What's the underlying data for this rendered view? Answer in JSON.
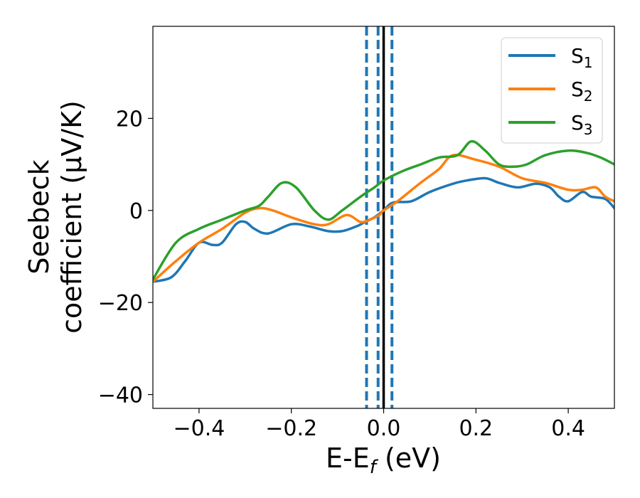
{
  "chart_data": {
    "type": "line",
    "xlabel": {
      "main": "E-E",
      "sub": "f",
      "unit": " (eV)"
    },
    "ylabel": {
      "line1": "Seebeck",
      "line2": "coefficient  (μV/K)"
    },
    "xlim": [
      -0.5,
      0.5
    ],
    "ylim": [
      -43,
      40
    ],
    "xticks": [
      -0.4,
      -0.2,
      0.0,
      0.2,
      0.4
    ],
    "xtick_labels": [
      "−0.4",
      "−0.2",
      "0.0",
      "0.2",
      "0.4"
    ],
    "yticks": [
      -40,
      -20,
      0,
      20
    ],
    "ytick_labels": [
      "−40",
      "−20",
      "0",
      "20"
    ],
    "grid": false,
    "legend_position": "top-right",
    "vlines": [
      {
        "x": 0.0,
        "style": "solid",
        "color": "#000000"
      },
      {
        "x": -0.037,
        "style": "dashed",
        "color": "#1f77b4"
      },
      {
        "x": -0.012,
        "style": "dashed",
        "color": "#1f77b4"
      },
      {
        "x": 0.018,
        "style": "dashed",
        "color": "#1f77b4"
      }
    ],
    "series": [
      {
        "name": "S",
        "sub": "1",
        "color": "#1f77b4",
        "x": [
          -0.5,
          -0.46,
          -0.43,
          -0.4,
          -0.37,
          -0.35,
          -0.32,
          -0.3,
          -0.28,
          -0.25,
          -0.2,
          -0.16,
          -0.12,
          -0.09,
          -0.06,
          -0.04,
          -0.02,
          0.0,
          0.02,
          0.06,
          0.1,
          0.15,
          0.18,
          0.22,
          0.25,
          0.29,
          0.33,
          0.36,
          0.38,
          0.4,
          0.43,
          0.45,
          0.48,
          0.5
        ],
        "y": [
          -15.5,
          -14.5,
          -11,
          -7,
          -7.5,
          -7,
          -3,
          -2.5,
          -4,
          -5,
          -3,
          -3.5,
          -4.5,
          -4.5,
          -3.5,
          -2.5,
          -1.5,
          0,
          1.7,
          2,
          4,
          5.8,
          6.5,
          7,
          6,
          5,
          5.8,
          5,
          3,
          2,
          4,
          3,
          2.5,
          0.5
        ]
      },
      {
        "name": "S",
        "sub": "2",
        "color": "#ff7f0e",
        "x": [
          -0.5,
          -0.45,
          -0.4,
          -0.35,
          -0.3,
          -0.27,
          -0.24,
          -0.2,
          -0.15,
          -0.12,
          -0.08,
          -0.05,
          -0.03,
          -0.01,
          0.0,
          0.03,
          0.08,
          0.12,
          0.15,
          0.2,
          0.25,
          0.3,
          0.35,
          0.4,
          0.43,
          0.46,
          0.48,
          0.5
        ],
        "y": [
          -15.5,
          -11,
          -7,
          -4,
          -0.5,
          0.5,
          0,
          -1.5,
          -3,
          -3,
          -1,
          -2.5,
          -2,
          -1,
          0,
          2,
          6,
          9,
          12,
          11,
          9.5,
          7,
          6,
          4.5,
          4.5,
          5,
          3,
          2
        ]
      },
      {
        "name": "S",
        "sub": "3",
        "color": "#2ca02c",
        "x": [
          -0.5,
          -0.45,
          -0.4,
          -0.35,
          -0.3,
          -0.27,
          -0.25,
          -0.22,
          -0.19,
          -0.15,
          -0.12,
          -0.09,
          -0.05,
          -0.02,
          0.0,
          0.04,
          0.08,
          0.12,
          0.16,
          0.19,
          0.22,
          0.25,
          0.28,
          0.31,
          0.35,
          0.4,
          0.44,
          0.47,
          0.5
        ],
        "y": [
          -15,
          -7,
          -4,
          -2,
          0,
          1,
          3,
          6,
          5,
          0,
          -2,
          0,
          3,
          5,
          6.5,
          8.5,
          10,
          11.5,
          12,
          15,
          13,
          10,
          9.5,
          10,
          12,
          13,
          12.5,
          11.5,
          10
        ]
      }
    ]
  }
}
